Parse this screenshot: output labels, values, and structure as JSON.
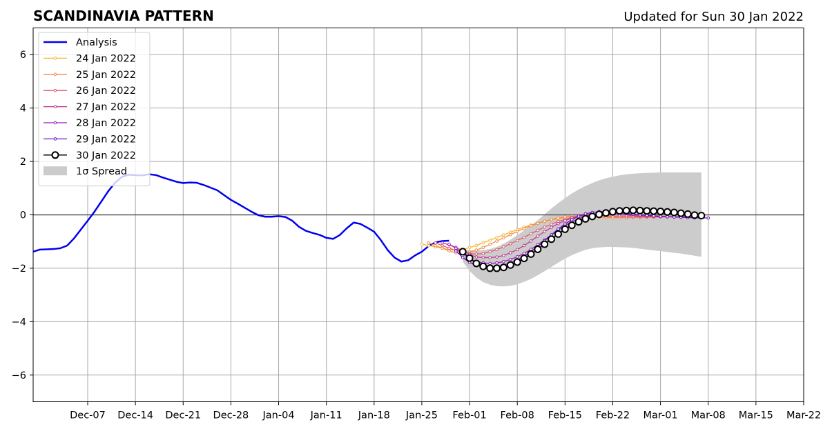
{
  "chart_data": {
    "type": "line",
    "title": "SCANDINAVIA PATTERN",
    "subtitle": "Updated for Sun 30 Jan 2022",
    "xlabel": "",
    "ylabel": "",
    "xlim": [
      "2021-11-29",
      "2022-03-22"
    ],
    "ylim": [
      -7,
      7
    ],
    "grid": true,
    "legend_position": "top-left",
    "x_ticks": [
      "Dec-07",
      "Dec-14",
      "Dec-21",
      "Dec-28",
      "Jan-04",
      "Jan-11",
      "Jan-18",
      "Jan-25",
      "Feb-01",
      "Feb-08",
      "Feb-15",
      "Feb-22",
      "Mar-01",
      "Mar-08",
      "Mar-15",
      "Mar-22"
    ],
    "x_tick_dates": [
      "2021-12-07",
      "2021-12-14",
      "2021-12-21",
      "2021-12-28",
      "2022-01-04",
      "2022-01-11",
      "2022-01-18",
      "2022-01-25",
      "2022-02-01",
      "2022-02-08",
      "2022-02-15",
      "2022-02-22",
      "2022-03-01",
      "2022-03-08",
      "2022-03-15",
      "2022-03-22"
    ],
    "y_ticks": [
      6,
      4,
      2,
      0,
      -2,
      -4,
      -6
    ],
    "y_tick_labels": [
      "6",
      "4",
      "2",
      "0",
      "−2",
      "−4",
      "−6"
    ],
    "reference_line_y": 0,
    "series": [
      {
        "name": "Analysis",
        "kind": "analysis",
        "color": "#0000ee",
        "start": "2021-11-29",
        "values": [
          -1.38,
          -1.3,
          -1.29,
          -1.28,
          -1.25,
          -1.15,
          -0.88,
          -0.55,
          -0.22,
          0.12,
          0.5,
          0.88,
          1.2,
          1.42,
          1.5,
          1.49,
          1.48,
          1.52,
          1.49,
          1.4,
          1.32,
          1.24,
          1.19,
          1.21,
          1.2,
          1.12,
          1.02,
          0.92,
          0.74,
          0.56,
          0.42,
          0.27,
          0.12,
          -0.01,
          -0.07,
          -0.07,
          -0.05,
          -0.08,
          -0.22,
          -0.45,
          -0.6,
          -0.68,
          -0.75,
          -0.86,
          -0.9,
          -0.75,
          -0.5,
          -0.29,
          -0.34,
          -0.48,
          -0.63,
          -0.95,
          -1.32,
          -1.6,
          -1.75,
          -1.7,
          -1.52,
          -1.38,
          -1.17,
          -1.03,
          -0.98,
          -0.97
        ]
      },
      {
        "name": "24 Jan 2022",
        "kind": "forecast",
        "color": "#f5b82e",
        "start": "2022-01-25",
        "values": [
          -1.1,
          -1.15,
          -1.2,
          -1.25,
          -1.3,
          -1.33,
          -1.3,
          -1.22,
          -1.15,
          -1.05,
          -0.95,
          -0.85,
          -0.75,
          -0.65,
          -0.55,
          -0.46,
          -0.38,
          -0.31,
          -0.25,
          -0.19,
          -0.15,
          -0.11,
          -0.08,
          -0.06,
          -0.05,
          -0.05,
          -0.06,
          -0.07,
          -0.08,
          -0.09,
          -0.09,
          -0.09,
          -0.09,
          -0.09,
          -0.09,
          -0.08,
          -0.07,
          -0.06
        ]
      },
      {
        "name": "25 Jan 2022",
        "kind": "forecast",
        "color": "#f28a4a",
        "start": "2022-01-26",
        "values": [
          -1.05,
          -1.15,
          -1.25,
          -1.35,
          -1.42,
          -1.45,
          -1.4,
          -1.32,
          -1.22,
          -1.1,
          -0.98,
          -0.86,
          -0.74,
          -0.62,
          -0.51,
          -0.41,
          -0.32,
          -0.24,
          -0.17,
          -0.12,
          -0.08,
          -0.06,
          -0.05,
          -0.06,
          -0.07,
          -0.09,
          -0.1,
          -0.11,
          -0.11,
          -0.11,
          -0.1,
          -0.1,
          -0.09,
          -0.09,
          -0.08,
          -0.08,
          -0.07,
          -0.07
        ]
      },
      {
        "name": "26 Jan 2022",
        "kind": "forecast",
        "color": "#dc5a72",
        "start": "2022-01-27",
        "values": [
          -1.05,
          -1.15,
          -1.25,
          -1.33,
          -1.4,
          -1.45,
          -1.47,
          -1.45,
          -1.38,
          -1.3,
          -1.2,
          -1.08,
          -0.96,
          -0.84,
          -0.71,
          -0.58,
          -0.46,
          -0.35,
          -0.25,
          -0.17,
          -0.1,
          -0.06,
          -0.03,
          -0.02,
          -0.03,
          -0.04,
          -0.05,
          -0.06,
          -0.07,
          -0.07,
          -0.07,
          -0.07,
          -0.07,
          -0.07,
          -0.07,
          -0.07,
          -0.07,
          -0.07
        ]
      },
      {
        "name": "27 Jan 2022",
        "kind": "forecast",
        "color": "#c03c96",
        "start": "2022-01-28",
        "values": [
          -1.05,
          -1.12,
          -1.22,
          -1.35,
          -1.48,
          -1.58,
          -1.6,
          -1.6,
          -1.58,
          -1.52,
          -1.42,
          -1.3,
          -1.15,
          -0.98,
          -0.8,
          -0.63,
          -0.47,
          -0.33,
          -0.22,
          -0.12,
          -0.05,
          0.0,
          0.03,
          0.04,
          0.03,
          0.02,
          0.0,
          -0.01,
          -0.03,
          -0.04,
          -0.05,
          -0.06,
          -0.06,
          -0.07,
          -0.07,
          -0.08,
          -0.08,
          -0.08
        ]
      },
      {
        "name": "28 Jan 2022",
        "kind": "forecast",
        "color": "#9a1cb4",
        "start": "2022-01-29",
        "values": [
          -1.1,
          -1.25,
          -1.45,
          -1.65,
          -1.75,
          -1.8,
          -1.82,
          -1.8,
          -1.75,
          -1.67,
          -1.57,
          -1.44,
          -1.29,
          -1.12,
          -0.94,
          -0.75,
          -0.57,
          -0.4,
          -0.26,
          -0.14,
          -0.05,
          0.01,
          0.05,
          0.07,
          0.07,
          0.06,
          0.04,
          0.02,
          0.0,
          -0.02,
          -0.04,
          -0.06,
          -0.07,
          -0.08,
          -0.09,
          -0.1,
          -0.11,
          -0.11
        ]
      },
      {
        "name": "29 Jan 2022",
        "kind": "forecast",
        "color": "#6a10c0",
        "start": "2022-01-30",
        "values": [
          -1.35,
          -1.6,
          -1.78,
          -1.88,
          -1.95,
          -1.96,
          -1.93,
          -1.88,
          -1.8,
          -1.69,
          -1.55,
          -1.38,
          -1.18,
          -0.97,
          -0.75,
          -0.53,
          -0.34,
          -0.18,
          -0.05,
          0.04,
          0.09,
          0.12,
          0.12,
          0.11,
          0.09,
          0.06,
          0.03,
          0.0,
          -0.02,
          -0.04,
          -0.06,
          -0.07,
          -0.08,
          -0.09,
          -0.1,
          -0.11,
          -0.11,
          -0.12
        ]
      },
      {
        "name": "30 Jan 2022",
        "kind": "forecast-main",
        "color": "#000000",
        "start": "2022-01-31",
        "values": [
          -1.38,
          -1.62,
          -1.82,
          -1.93,
          -2.0,
          -2.0,
          -1.97,
          -1.88,
          -1.77,
          -1.63,
          -1.47,
          -1.29,
          -1.1,
          -0.91,
          -0.72,
          -0.54,
          -0.39,
          -0.26,
          -0.15,
          -0.06,
          0.02,
          0.07,
          0.12,
          0.15,
          0.16,
          0.17,
          0.16,
          0.15,
          0.14,
          0.13,
          0.11,
          0.09,
          0.06,
          0.03,
          -0.01,
          -0.03
        ]
      }
    ],
    "spread": {
      "name": "1σ Spread",
      "color": "#cccccc",
      "start": "2022-01-31",
      "upper": [
        -1.3,
        -1.32,
        -1.33,
        -1.32,
        -1.28,
        -1.2,
        -1.08,
        -0.93,
        -0.76,
        -0.58,
        -0.4,
        -0.2,
        0.02,
        0.24,
        0.44,
        0.63,
        0.8,
        0.95,
        1.08,
        1.19,
        1.29,
        1.37,
        1.43,
        1.48,
        1.52,
        1.54,
        1.56,
        1.57,
        1.58,
        1.59,
        1.59,
        1.59,
        1.59,
        1.59,
        1.59,
        1.59
      ],
      "lower": [
        -1.75,
        -2.1,
        -2.35,
        -2.52,
        -2.62,
        -2.67,
        -2.68,
        -2.66,
        -2.6,
        -2.51,
        -2.4,
        -2.26,
        -2.11,
        -1.95,
        -1.79,
        -1.64,
        -1.51,
        -1.4,
        -1.31,
        -1.25,
        -1.22,
        -1.2,
        -1.2,
        -1.21,
        -1.22,
        -1.24,
        -1.27,
        -1.3,
        -1.33,
        -1.36,
        -1.39,
        -1.42,
        -1.45,
        -1.49,
        -1.53,
        -1.57
      ]
    }
  }
}
